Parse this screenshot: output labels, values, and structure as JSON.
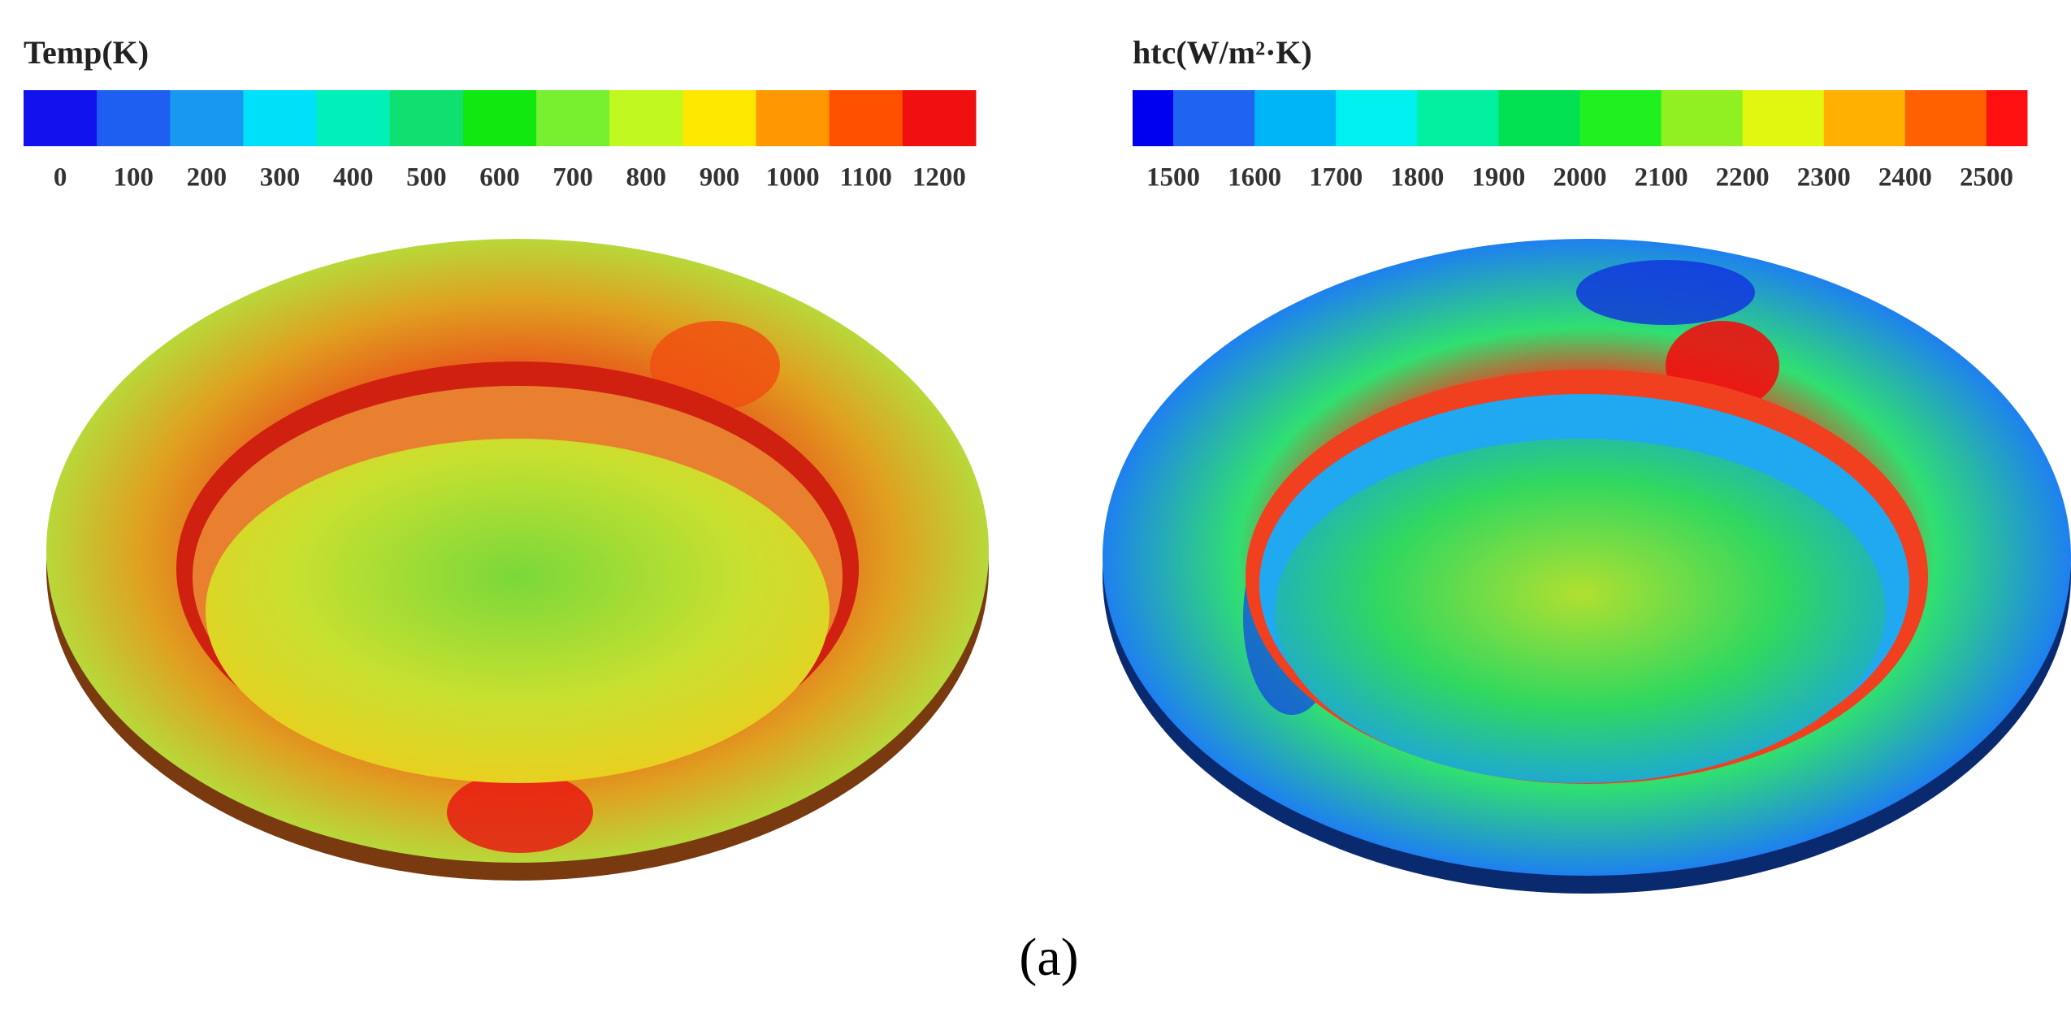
{
  "panels": [
    {
      "title": "Temp(K)",
      "ticks": [
        0,
        100,
        200,
        300,
        400,
        500,
        600,
        700,
        800,
        900,
        1000,
        1100,
        1200
      ],
      "colors": [
        "#1212ee",
        "#1e5ef0",
        "#1898f0",
        "#00e0f8",
        "#00f0b8",
        "#10e070",
        "#10e810",
        "#78f030",
        "#c0f820",
        "#ffe800",
        "#ff9800",
        "#ff5000",
        "#f01010"
      ]
    },
    {
      "title": "htc(W/m²·K)",
      "ticks": [
        1500,
        1600,
        1700,
        1800,
        1900,
        2000,
        2100,
        2200,
        2300,
        2400,
        2500
      ],
      "colors": [
        "#0000f0",
        "#1e64f0",
        "#00b4f8",
        "#00f0f0",
        "#00f0a0",
        "#00e050",
        "#20f020",
        "#90f020",
        "#e0f810",
        "#ffb000",
        "#ff6000",
        "#ff1010"
      ]
    }
  ],
  "caption": "(a)"
}
